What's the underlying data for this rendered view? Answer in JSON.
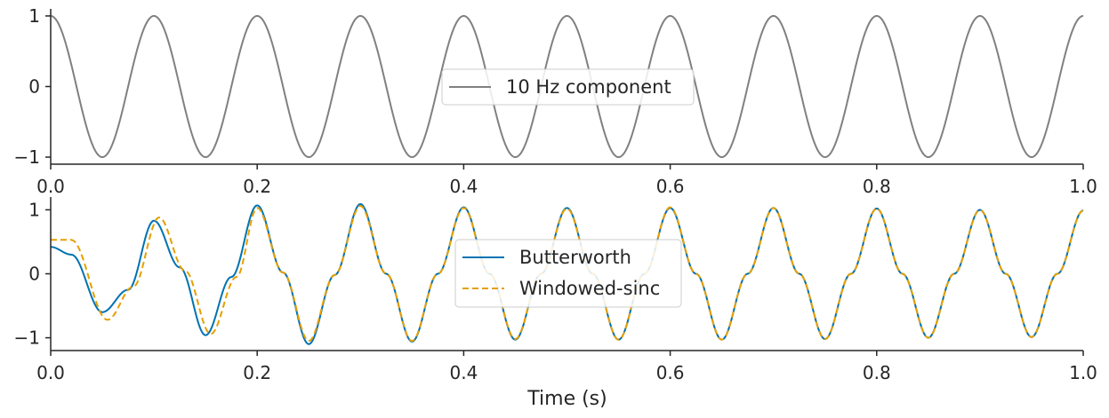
{
  "chart_data": [
    {
      "type": "line",
      "title": "",
      "xlabel": "",
      "ylabel": "",
      "xlim": [
        0,
        1
      ],
      "ylim": [
        -1.1,
        1.1
      ],
      "xticks": [
        0,
        0.2,
        0.4,
        0.6,
        0.8,
        1
      ],
      "xtick_labels": [
        "0.0",
        "0.2",
        "0.4",
        "0.6",
        "0.8",
        "1.0"
      ],
      "yticks": [
        -1,
        0,
        1
      ],
      "ytick_labels": [
        "−1",
        "0",
        "1"
      ],
      "legend_position": "center",
      "grid": false,
      "series": [
        {
          "name": "10 Hz component",
          "color": "#808080",
          "dash": "solid",
          "function": "cos",
          "frequency_hz": 10,
          "amplitude": 1
        }
      ]
    },
    {
      "type": "line",
      "title": "",
      "xlabel": "Time (s)",
      "ylabel": "",
      "xlim": [
        0,
        1
      ],
      "ylim": [
        -1.2,
        1.2
      ],
      "xticks": [
        0,
        0.2,
        0.4,
        0.6,
        0.8,
        1
      ],
      "xtick_labels": [
        "0.0",
        "0.2",
        "0.4",
        "0.6",
        "0.8",
        "1.0"
      ],
      "yticks": [
        -1,
        0,
        1
      ],
      "ytick_labels": [
        "−1",
        "0",
        "1"
      ],
      "legend_position": "center",
      "grid": false,
      "series": [
        {
          "name": "Butterworth",
          "color": "#0072b2",
          "dash": "solid",
          "x": [
            0,
            0.02,
            0.05,
            0.075,
            0.1,
            0.125,
            0.15,
            0.175,
            0.2,
            0.225,
            0.25,
            0.275,
            0.3,
            0.325,
            0.35,
            0.375,
            0.4,
            0.425,
            0.45,
            0.475,
            0.5,
            0.525,
            0.55,
            0.575,
            0.6,
            0.625,
            0.65,
            0.675,
            0.7,
            0.725,
            0.75,
            0.775,
            0.8,
            0.825,
            0.85,
            0.875,
            0.9,
            0.925,
            0.95,
            0.975,
            1.0
          ],
          "y": [
            0.42,
            0.3,
            -0.6,
            -0.25,
            0.83,
            0.1,
            -0.96,
            -0.05,
            1.07,
            0.02,
            -1.1,
            -0.02,
            1.09,
            0.0,
            -1.06,
            0.0,
            1.04,
            0.0,
            -1.03,
            0.0,
            1.03,
            0.0,
            -1.03,
            0.0,
            1.03,
            0.0,
            -1.03,
            0.0,
            1.03,
            0.0,
            -1.02,
            0.0,
            1.02,
            0.0,
            -1.0,
            0.0,
            1.0,
            0.0,
            -0.99,
            0.0,
            0.99
          ]
        },
        {
          "name": "Windowed-sinc",
          "color": "#e69f00",
          "dash": "dashed",
          "x": [
            0,
            0.02,
            0.055,
            0.08,
            0.105,
            0.13,
            0.155,
            0.18,
            0.2,
            0.225,
            0.25,
            0.275,
            0.3,
            0.325,
            0.35,
            0.375,
            0.4,
            0.425,
            0.45,
            0.475,
            0.5,
            0.525,
            0.55,
            0.575,
            0.6,
            0.625,
            0.65,
            0.675,
            0.7,
            0.725,
            0.75,
            0.775,
            0.8,
            0.825,
            0.85,
            0.875,
            0.9,
            0.925,
            0.95,
            0.975,
            1.0
          ],
          "y": [
            0.53,
            0.53,
            -0.72,
            -0.2,
            0.88,
            0.05,
            -0.94,
            -0.05,
            1.03,
            0.02,
            -1.05,
            -0.02,
            1.06,
            0.0,
            -1.05,
            0.0,
            1.03,
            0.0,
            -1.02,
            0.0,
            1.02,
            0.0,
            -1.03,
            0.0,
            1.04,
            0.0,
            -1.03,
            0.0,
            1.03,
            0.0,
            -1.02,
            0.0,
            1.02,
            0.0,
            -1.0,
            0.0,
            1.0,
            0.0,
            -0.99,
            0.0,
            0.99
          ]
        }
      ]
    }
  ]
}
